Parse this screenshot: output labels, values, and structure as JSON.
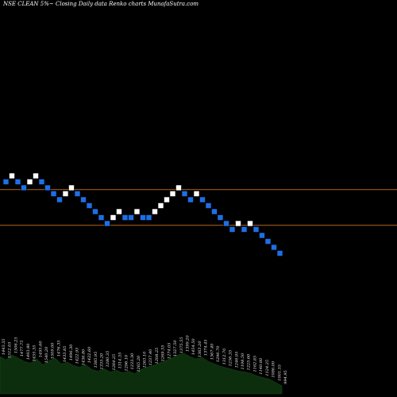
{
  "title": "NSE CLEAN  5%~  Closing Daily data  Renko  charts MunafaSutra.com",
  "colors": {
    "background": "#000000",
    "up_brick": "#ffffff",
    "down_brick": "#1e6fe6",
    "level_line": "#b5651d",
    "volume_fill": "#0c2e0c",
    "price_label": "#e8e8e8"
  },
  "chart_data": {
    "type": "renko",
    "title": "NSE CLEAN  5%~  Closing Daily data  Renko  charts MunafaSutra.com",
    "brick_size_label": "5%~",
    "bricks": [
      {
        "dir": "down",
        "level": 1
      },
      {
        "dir": "up",
        "level": 0
      },
      {
        "dir": "down",
        "level": 1
      },
      {
        "dir": "down",
        "level": 2
      },
      {
        "dir": "up",
        "level": 1
      },
      {
        "dir": "up",
        "level": 0
      },
      {
        "dir": "down",
        "level": 1
      },
      {
        "dir": "down",
        "level": 2
      },
      {
        "dir": "down",
        "level": 3
      },
      {
        "dir": "down",
        "level": 4
      },
      {
        "dir": "up",
        "level": 3
      },
      {
        "dir": "up",
        "level": 2
      },
      {
        "dir": "down",
        "level": 3
      },
      {
        "dir": "down",
        "level": 4
      },
      {
        "dir": "down",
        "level": 5
      },
      {
        "dir": "down",
        "level": 6
      },
      {
        "dir": "down",
        "level": 7
      },
      {
        "dir": "down",
        "level": 8
      },
      {
        "dir": "up",
        "level": 7
      },
      {
        "dir": "up",
        "level": 6
      },
      {
        "dir": "down",
        "level": 7
      },
      {
        "dir": "down",
        "level": 7
      },
      {
        "dir": "up",
        "level": 6
      },
      {
        "dir": "down",
        "level": 7
      },
      {
        "dir": "down",
        "level": 7
      },
      {
        "dir": "up",
        "level": 6
      },
      {
        "dir": "up",
        "level": 5
      },
      {
        "dir": "up",
        "level": 4
      },
      {
        "dir": "up",
        "level": 3
      },
      {
        "dir": "up",
        "level": 2
      },
      {
        "dir": "down",
        "level": 3
      },
      {
        "dir": "down",
        "level": 4
      },
      {
        "dir": "up",
        "level": 3
      },
      {
        "dir": "down",
        "level": 4
      },
      {
        "dir": "down",
        "level": 5
      },
      {
        "dir": "down",
        "level": 6
      },
      {
        "dir": "down",
        "level": 7
      },
      {
        "dir": "down",
        "level": 8
      },
      {
        "dir": "down",
        "level": 9
      },
      {
        "dir": "up",
        "level": 8
      },
      {
        "dir": "down",
        "level": 9
      },
      {
        "dir": "up",
        "level": 8
      },
      {
        "dir": "down",
        "level": 9
      },
      {
        "dir": "down",
        "level": 10
      },
      {
        "dir": "down",
        "level": 11
      },
      {
        "dir": "down",
        "level": 12
      },
      {
        "dir": "down",
        "level": 13
      }
    ],
    "reference_levels": [
      2.3,
      8.3
    ],
    "volume": [
      46,
      42,
      48,
      44,
      40,
      38,
      43,
      36,
      41,
      44,
      37,
      39,
      35,
      33,
      36,
      30,
      28,
      31,
      27,
      29,
      26,
      28,
      25,
      30,
      33,
      35,
      38,
      41,
      44,
      48,
      50,
      46,
      43,
      45,
      40,
      37,
      34,
      32,
      30,
      28,
      27,
      25,
      22,
      20,
      18,
      14,
      10
    ],
    "price_labels": [
      "1443.35",
      "1512.05",
      "1506.25",
      "1477.75",
      "1493.80",
      "1455.35",
      "1495.60",
      "1540.20",
      "1509.00",
      "1476.35",
      "1433.85",
      "1496.30",
      "1422.95",
      "1436.80",
      "1422.60",
      "1385.95",
      "1335.20",
      "1280.35",
      "1264.25",
      "1314.35",
      "1296.10",
      "1233.30",
      "1265.20",
      "1263.10",
      "1237.40",
      "1208.25",
      "1269.35",
      "1274.05",
      "1327.50",
      "1375.55",
      "1399.20",
      "1454.50",
      "1363.20",
      "1374.45",
      "1367.40",
      "1296.70",
      "1312.70",
      "1256.35",
      "1246.95",
      "1198.50",
      "1225.60",
      "1162.85",
      "1140.80",
      "1124.25",
      "1086.00",
      "1001.55",
      "994.95"
    ]
  }
}
